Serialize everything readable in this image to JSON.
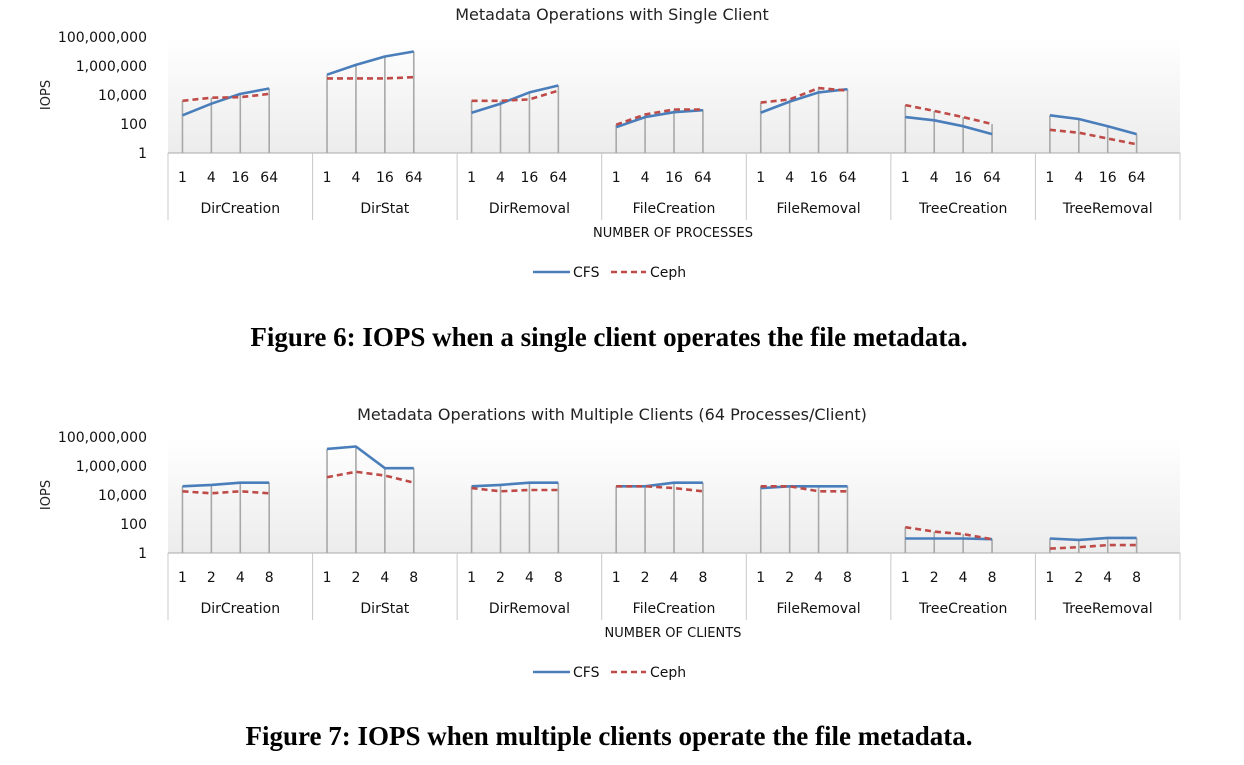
{
  "chart_data": [
    {
      "type": "line",
      "title": "Metadata Operations with Single Client",
      "ylabel": "IOPS",
      "xlabel": "NUMBER OF PROCESSES",
      "yscale": "log10",
      "ylim": [
        1,
        100000000
      ],
      "yticks": [
        "1",
        "100",
        "10,000",
        "1,000,000",
        "100,000,000"
      ],
      "groups": [
        "DirCreation",
        "DirStat",
        "DirRemoval",
        "FileCreation",
        "FileRemoval",
        "TreeCreation",
        "TreeRemoval"
      ],
      "x_ticks": [
        "1",
        "4",
        "16",
        "64"
      ],
      "series": [
        {
          "name": "CFS",
          "style": "solid",
          "color": "#4a7ebb",
          "values": [
            [
              400,
              2500,
              12000,
              28000
            ],
            [
              250000,
              1200000,
              4500000,
              10000000
            ],
            [
              600,
              2500,
              15000,
              45000
            ],
            [
              60,
              300,
              650,
              900
            ],
            [
              600,
              3500,
              15000,
              25000
            ],
            [
              300,
              180,
              70,
              20
            ],
            [
              400,
              220,
              70,
              20
            ]
          ]
        },
        {
          "name": "Ceph",
          "style": "dashed",
          "color": "#be4b48",
          "values": [
            [
              4000,
              6500,
              7000,
              12000
            ],
            [
              140000,
              140000,
              140000,
              170000
            ],
            [
              4000,
              4000,
              5000,
              20000
            ],
            [
              90,
              450,
              1000,
              1000
            ],
            [
              3000,
              5000,
              30000,
              20000
            ],
            [
              2000,
              800,
              300,
              100
            ],
            [
              40,
              25,
              10,
              4
            ]
          ]
        }
      ],
      "legend": "bottom-center"
    },
    {
      "type": "line",
      "title": "Metadata Operations with Multiple Clients (64 Processes/Client)",
      "ylabel": "IOPS",
      "xlabel": "NUMBER OF CLIENTS",
      "yscale": "log10",
      "ylim": [
        1,
        100000000
      ],
      "yticks": [
        "1",
        "100",
        "10,000",
        "1,000,000",
        "100,000,000"
      ],
      "groups": [
        "DirCreation",
        "DirStat",
        "DirRemoval",
        "FileCreation",
        "FileRemoval",
        "TreeCreation",
        "TreeRemoval"
      ],
      "x_ticks": [
        "1",
        "2",
        "4",
        "8"
      ],
      "series": [
        {
          "name": "CFS",
          "style": "solid",
          "color": "#4a7ebb",
          "values": [
            [
              40000,
              50000,
              70000,
              70000
            ],
            [
              15000000,
              22000000,
              700000,
              700000
            ],
            [
              40000,
              50000,
              70000,
              70000
            ],
            [
              40000,
              40000,
              70000,
              70000
            ],
            [
              30000,
              40000,
              40000,
              40000
            ],
            [
              10,
              10,
              10,
              9
            ],
            [
              10,
              8,
              11,
              11
            ]
          ]
        },
        {
          "name": "Ceph",
          "style": "dashed",
          "color": "#be4b48",
          "values": [
            [
              18000,
              13000,
              18000,
              13000
            ],
            [
              170000,
              400000,
              220000,
              70000
            ],
            [
              30000,
              18000,
              22000,
              22000
            ],
            [
              40000,
              40000,
              30000,
              18000
            ],
            [
              40000,
              40000,
              18000,
              18000
            ],
            [
              60,
              30,
              20,
              9
            ],
            [
              2,
              2.5,
              3.5,
              3.5
            ]
          ]
        }
      ],
      "legend": "bottom-center"
    }
  ],
  "captions": {
    "fig6": "Figure 6: IOPS when a single client operates the file metadata.",
    "fig7": "Figure 7: IOPS when multiple clients operate the file metadata."
  }
}
